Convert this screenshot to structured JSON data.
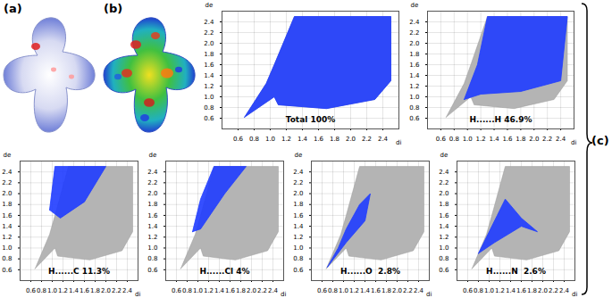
{
  "panel_labels": [
    "(a)",
    "(b)",
    "(c)"
  ],
  "full_fingerprint": {
    "di": [
      0.68,
      1.05,
      1.1,
      1.7,
      2.3,
      2.5,
      2.5,
      1.3,
      1.05,
      0.95
    ],
    "de": [
      0.62,
      1.0,
      0.85,
      0.78,
      0.95,
      1.3,
      2.5,
      2.5,
      1.6,
      1.25
    ]
  },
  "chart_data": [
    {
      "type": "fingerprint",
      "title": "Total 100%",
      "xlabel": "di",
      "ylabel": "de",
      "color": "#1f3cff",
      "grid": true,
      "xlim": [
        0.4,
        2.6
      ],
      "ylim": [
        0.4,
        2.6
      ],
      "xticks": [
        0.6,
        0.8,
        {
          "value": 1,
          "label": "1.0"
        },
        1.2,
        1.4,
        1.6,
        1.8,
        {
          "value": 2,
          "label": "2.0"
        },
        2.2,
        2.4
      ],
      "yticks": [
        0.6,
        0.8,
        {
          "value": 1,
          "label": "1.0"
        },
        1.2,
        1.4,
        1.6,
        1.8,
        {
          "value": 2,
          "label": "2.0"
        },
        2.2,
        2.4
      ],
      "region": {
        "di": [
          0.68,
          1.05,
          1.1,
          1.7,
          2.3,
          2.5,
          2.5,
          1.3,
          1.05,
          0.95
        ],
        "de": [
          0.62,
          1.0,
          0.85,
          0.78,
          0.95,
          1.3,
          2.5,
          2.5,
          1.6,
          1.25
        ]
      }
    },
    {
      "type": "fingerprint",
      "title": "H......H 46.9%",
      "xlabel": "di",
      "ylabel": "de",
      "color": "#1f3cff",
      "grid": true,
      "xlim": [
        0.4,
        2.6
      ],
      "ylim": [
        0.4,
        2.6
      ],
      "xticks": [
        0.6,
        0.8,
        {
          "value": 1,
          "label": "1.0"
        },
        1.2,
        1.4,
        1.6,
        1.8,
        {
          "value": 2,
          "label": "2.0"
        },
        2.2,
        2.4
      ],
      "yticks": [
        0.6,
        0.8,
        {
          "value": 1,
          "label": "1.0"
        },
        1.2,
        1.4,
        1.6,
        1.8,
        {
          "value": 2,
          "label": "2.0"
        },
        2.2,
        2.4
      ],
      "region": {
        "di": [
          0.95,
          1.2,
          1.8,
          2.4,
          2.5,
          1.3,
          1.15
        ],
        "de": [
          0.95,
          1.05,
          1.1,
          1.3,
          2.5,
          2.5,
          1.6
        ]
      }
    },
    {
      "type": "fingerprint",
      "title": "H......C 11.3%",
      "xlabel": "di",
      "ylabel": "de",
      "color": "#1f3cff",
      "grid": true,
      "xlim": [
        0.4,
        2.6
      ],
      "ylim": [
        0.4,
        2.6
      ],
      "xticks": [
        0.6,
        0.8,
        {
          "value": 1,
          "label": "1.0"
        },
        1.2,
        1.4,
        1.6,
        1.8,
        {
          "value": 2,
          "label": "2.0"
        },
        2.2,
        2.4
      ],
      "yticks": [
        0.6,
        0.8,
        {
          "value": 1,
          "label": "1.0"
        },
        1.2,
        1.4,
        1.6,
        1.8,
        {
          "value": 2,
          "label": "2.0"
        },
        2.2,
        2.4
      ],
      "region": {
        "di": [
          0.95,
          1.15,
          1.6,
          2.0,
          1.05
        ],
        "de": [
          1.7,
          1.55,
          1.85,
          2.5,
          2.5
        ]
      }
    },
    {
      "type": "fingerprint",
      "title": "H......Cl 4%",
      "xlabel": "di",
      "ylabel": "de",
      "color": "#1f3cff",
      "grid": true,
      "xlim": [
        0.4,
        2.6
      ],
      "ylim": [
        0.4,
        2.6
      ],
      "xticks": [
        0.6,
        0.8,
        {
          "value": 1,
          "label": "1.0"
        },
        1.2,
        1.4,
        1.6,
        1.8,
        {
          "value": 2,
          "label": "2.0"
        },
        2.2,
        2.4
      ],
      "yticks": [
        0.6,
        0.8,
        {
          "value": 1,
          "label": "1.0"
        },
        1.2,
        1.4,
        1.6,
        1.8,
        {
          "value": 2,
          "label": "2.0"
        },
        2.2,
        2.4
      ],
      "region": {
        "di": [
          0.9,
          1.05,
          1.5,
          1.9,
          1.3,
          1.05
        ],
        "de": [
          1.3,
          1.35,
          2.0,
          2.5,
          2.5,
          1.9
        ]
      }
    },
    {
      "type": "fingerprint",
      "title": "H......O  2.8%",
      "xlabel": "di",
      "ylabel": "de",
      "color": "#1f3cff",
      "grid": true,
      "xlim": [
        0.4,
        2.6
      ],
      "ylim": [
        0.4,
        2.6
      ],
      "xticks": [
        0.6,
        0.8,
        {
          "value": 1,
          "label": "1.0"
        },
        1.2,
        1.4,
        1.6,
        1.8,
        {
          "value": 2,
          "label": "2.0"
        },
        2.2,
        2.4
      ],
      "yticks": [
        0.6,
        0.8,
        {
          "value": 1,
          "label": "1.0"
        },
        1.2,
        1.4,
        1.6,
        1.8,
        {
          "value": 2,
          "label": "2.0"
        },
        2.2,
        2.4
      ],
      "region": {
        "di": [
          0.7,
          1.05,
          1.4,
          1.5,
          1.3,
          1.05,
          0.9
        ],
        "de": [
          0.65,
          1.1,
          1.5,
          2.0,
          1.8,
          1.35,
          1.0
        ]
      }
    },
    {
      "type": "fingerprint",
      "title": "H......N  2.6%",
      "xlabel": "di",
      "ylabel": "de",
      "color": "#1f3cff",
      "grid": true,
      "xlim": [
        0.4,
        2.6
      ],
      "ylim": [
        0.4,
        2.6
      ],
      "xticks": [
        0.6,
        0.8,
        {
          "value": 1,
          "label": "1.0"
        },
        1.2,
        1.4,
        1.6,
        1.8,
        {
          "value": 2,
          "label": "2.0"
        },
        2.2,
        2.4
      ],
      "yticks": [
        0.6,
        0.8,
        {
          "value": 1,
          "label": "1.0"
        },
        1.2,
        1.4,
        1.6,
        1.8,
        {
          "value": 2,
          "label": "2.0"
        },
        2.2,
        2.4
      ],
      "region": {
        "di": [
          0.8,
          1.1,
          1.6,
          1.9,
          1.6,
          1.3,
          1.15
        ],
        "de": [
          0.9,
          1.1,
          1.4,
          1.3,
          1.55,
          1.9,
          1.6
        ]
      }
    }
  ]
}
